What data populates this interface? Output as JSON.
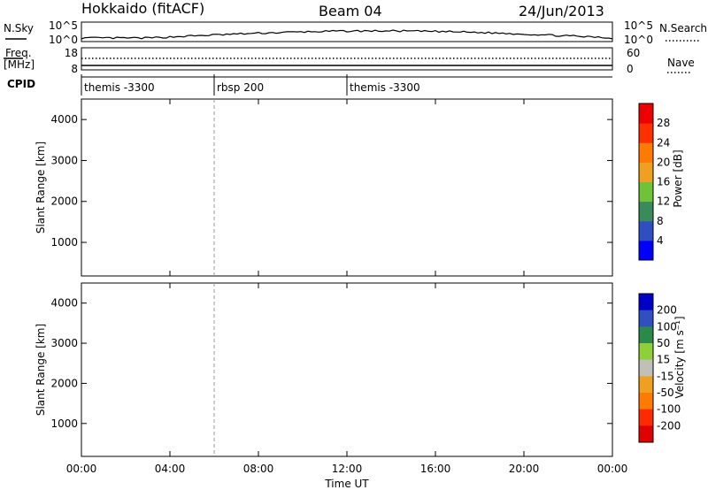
{
  "header": {
    "station": "Hokkaido (fitACF)",
    "beam": "Beam 04",
    "date": "24/Jun/2013"
  },
  "noise_panel": {
    "left_label": "N.Sky",
    "right_label": "N.Search",
    "left_ticks": [
      "10^5",
      "10^0"
    ],
    "right_ticks": [
      "10^5",
      "10^0"
    ]
  },
  "freq_panel": {
    "left_label_1": "Freq.",
    "left_label_2": "[MHz]",
    "right_label": "Nave",
    "left_ticks": [
      "18",
      "8"
    ],
    "right_ticks": [
      "60",
      "0"
    ]
  },
  "cpid": {
    "label": "CPID",
    "segments": [
      {
        "start_hour": 0,
        "name": "themis -3300"
      },
      {
        "start_hour": 6,
        "name": "rbsp 200"
      },
      {
        "start_hour": 12,
        "name": "themis -3300"
      }
    ]
  },
  "colors": {
    "power_scale": [
      "#0000ff",
      "#2f4fc0",
      "#3a8a5a",
      "#6fc23a",
      "#f0a020",
      "#ff7a00",
      "#ff3000",
      "#ee0000"
    ],
    "velocity_scale": [
      "#0000c8",
      "#3050c0",
      "#2a8a4a",
      "#8fd03a",
      "#c0c0b8",
      "#f0a020",
      "#ff7a00",
      "#ff2a00",
      "#e00000"
    ]
  },
  "chart_data": [
    {
      "type": "heatmap",
      "name": "power",
      "ylabel": "Slant Range [km]",
      "ylim": [
        180,
        4500
      ],
      "yticks": [
        1000,
        2000,
        3000,
        4000
      ],
      "xlim": [
        0,
        24
      ],
      "colorbar_label": "Power [dB]",
      "colorbar_ticks": [
        4,
        8,
        12,
        16,
        20,
        24,
        28
      ],
      "color_range": [
        0,
        32
      ]
    },
    {
      "type": "heatmap",
      "name": "velocity",
      "ylabel": "Slant Range [km]",
      "ylim": [
        180,
        4500
      ],
      "yticks": [
        1000,
        2000,
        3000,
        4000
      ],
      "xlim": [
        0,
        24
      ],
      "colorbar_label": "Velocity [m s⁻¹]",
      "colorbar_ticks": [
        "200",
        "100",
        "50",
        "15",
        "-15",
        "-50",
        "-100",
        "-200"
      ]
    }
  ],
  "x_axis": {
    "label": "Time UT",
    "ticks": [
      "00:00",
      "04:00",
      "08:00",
      "12:00",
      "16:00",
      "20:00",
      "00:00"
    ],
    "tick_hours": [
      0,
      4,
      8,
      12,
      16,
      20,
      24
    ]
  }
}
